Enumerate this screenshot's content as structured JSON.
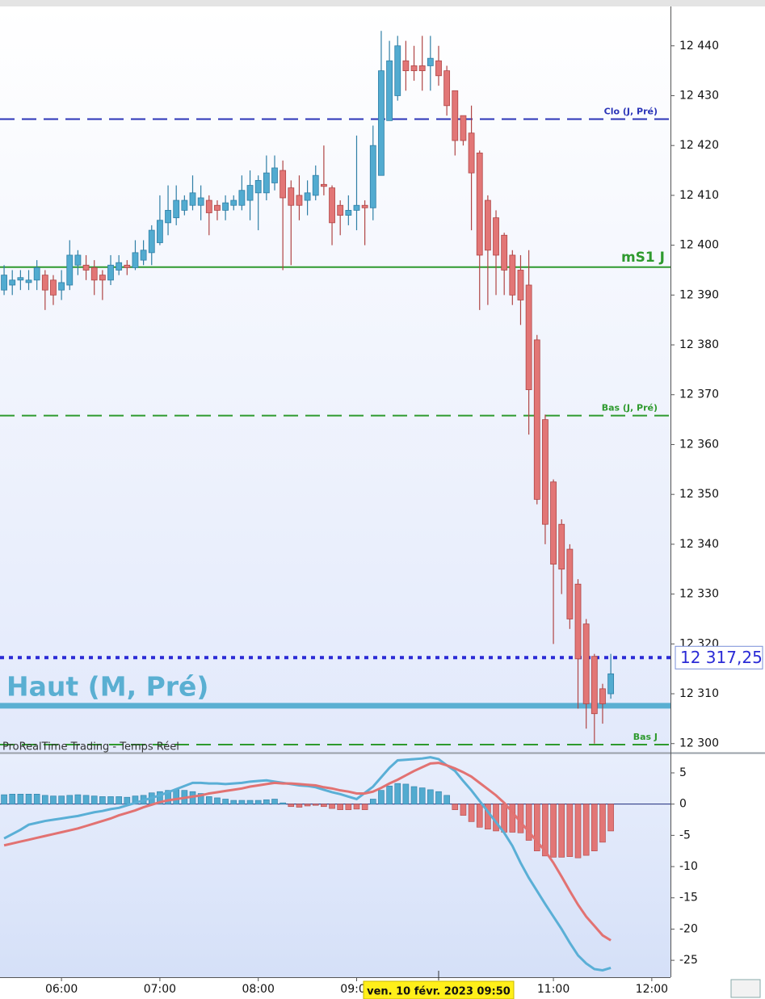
{
  "chart_data": [
    {
      "type": "candlestick",
      "x": [
        325,
        330,
        335,
        340,
        345,
        350,
        355,
        360,
        365,
        370,
        375,
        380,
        385,
        390,
        395,
        400,
        405,
        410,
        415,
        420,
        425,
        430,
        435,
        440,
        445,
        450,
        455,
        460,
        465,
        470,
        475,
        480,
        485,
        490,
        495,
        500,
        505,
        510,
        515,
        520,
        525,
        530,
        535,
        540,
        545,
        550,
        555,
        560,
        565,
        570,
        575,
        580,
        585,
        590,
        595,
        600,
        605,
        610,
        615,
        620,
        625,
        630,
        635,
        640,
        645,
        650,
        655,
        660,
        665,
        670,
        675,
        680,
        685,
        690,
        695
      ],
      "open": [
        12391,
        12392,
        12393,
        12392.5,
        12393,
        12394,
        12393,
        12391,
        12392,
        12396,
        12396,
        12395.5,
        12394,
        12393,
        12395,
        12396,
        12395.5,
        12397,
        12398.5,
        12400.5,
        12404.5,
        12405.5,
        12407,
        12408,
        12408,
        12409,
        12408,
        12407,
        12408,
        12408,
        12409,
        12410.5,
        12410.5,
        12412.5,
        12415,
        12411.5,
        12410,
        12409,
        12410,
        12412.2,
        12411.5,
        12408,
        12406,
        12407,
        12408,
        12407.5,
        12414,
        12425,
        12430,
        12437,
        12436,
        12436,
        12436,
        12437,
        12435,
        12431,
        12426,
        12422.5,
        12418.5,
        12409,
        12405.5,
        12402,
        12398,
        12395,
        12392,
        12381,
        12365,
        12352.5,
        12344,
        12339,
        12332,
        12324,
        12317.5,
        12311,
        12310
      ],
      "high": [
        12396,
        12395,
        12395,
        12395,
        12397,
        12395,
        12394,
        12395,
        12401,
        12399,
        12398,
        12397,
        12395,
        12398,
        12398,
        12397,
        12401,
        12401,
        12404,
        12410,
        12412,
        12412,
        12410,
        12414,
        12412,
        12410,
        12409,
        12410,
        12410,
        12414,
        12415,
        12414,
        12418,
        12418,
        12417,
        12413,
        12414,
        12413,
        12416,
        12420,
        12412,
        12409,
        12410,
        12422,
        12409,
        12424,
        12443,
        12441,
        12442,
        12441,
        12440,
        12442,
        12442,
        12440,
        12436,
        12431,
        12426,
        12428,
        12419,
        12410,
        12407,
        12402.5,
        12399,
        12398,
        12399,
        12382,
        12366,
        12353,
        12345,
        12340,
        12333,
        12325,
        12318,
        12312,
        12318
      ],
      "low": [
        12390,
        12390,
        12391,
        12391,
        12391,
        12387,
        12388,
        12389,
        12391,
        12394,
        12393,
        12390,
        12389,
        12392,
        12394,
        12394,
        12395,
        12396,
        12396,
        12400,
        12402,
        12404,
        12406,
        12407,
        12405,
        12402,
        12405,
        12405,
        12407,
        12407,
        12405,
        12403,
        12409,
        12411,
        12395,
        12396,
        12405,
        12406,
        12409,
        12410,
        12400,
        12402,
        12404,
        12403,
        12400,
        12405,
        12414,
        12425,
        12429,
        12431,
        12433,
        12431,
        12431,
        12432,
        12426,
        12418,
        12420,
        12403,
        12387,
        12388,
        12390,
        12390,
        12388,
        12384,
        12362,
        12348,
        12340,
        12320,
        12330,
        12323,
        12307,
        12303,
        12300,
        12304,
        12309
      ],
      "close": [
        12394,
        12393,
        12393.5,
        12393,
        12395.5,
        12391,
        12390,
        12392.5,
        12398,
        12398,
        12395,
        12393,
        12393,
        12396,
        12396.5,
        12395.5,
        12398.5,
        12399,
        12403,
        12405,
        12407,
        12409,
        12409,
        12410.5,
        12409.5,
        12406.5,
        12407,
        12408.5,
        12409,
        12411,
        12412,
        12413,
        12414.5,
        12415.5,
        12409.5,
        12408,
        12408,
        12410.5,
        12414,
        12411.8,
        12404.5,
        12406,
        12407,
        12408,
        12407.5,
        12420,
        12435,
        12437,
        12440,
        12435,
        12435,
        12435,
        12437.5,
        12434,
        12428,
        12421,
        12421,
        12414.5,
        12398,
        12399,
        12398,
        12395,
        12390,
        12389,
        12371,
        12349,
        12344,
        12336,
        12335,
        12325,
        12317,
        12308,
        12306,
        12308,
        12314
      ],
      "up_color": "#52abd0",
      "down_color": "#e27676",
      "xlim": [
        322.5,
        731.4
      ],
      "ylim": [
        12298.5,
        12447.9
      ],
      "yticks": [
        {
          "value": 12300,
          "label": "12 300"
        },
        {
          "value": 12310,
          "label": "12 310"
        },
        {
          "value": 12320,
          "label": "12 320"
        },
        {
          "value": 12330,
          "label": "12 330"
        },
        {
          "value": 12340,
          "label": "12 340"
        },
        {
          "value": 12350,
          "label": "12 350"
        },
        {
          "value": 12360,
          "label": "12 360"
        },
        {
          "value": 12370,
          "label": "12 370"
        },
        {
          "value": 12380,
          "label": "12 380"
        },
        {
          "value": 12390,
          "label": "12 390"
        },
        {
          "value": 12400,
          "label": "12 400"
        },
        {
          "value": 12410,
          "label": "12 410"
        },
        {
          "value": 12420,
          "label": "12 420"
        },
        {
          "value": 12430,
          "label": "12 430"
        },
        {
          "value": 12440,
          "label": "12 440"
        }
      ],
      "levels": [
        {
          "label": "Clo (J, Pré)",
          "value": 12425.3,
          "color": "#2b35b8",
          "style": "dashed",
          "label_side": "right",
          "label_size": "small"
        },
        {
          "label": "mS1 J",
          "value": 12395.6,
          "color": "#2e9a2e",
          "style": "solid",
          "label_side": "right",
          "label_size": "large"
        },
        {
          "label": "Bas (J, Pré)",
          "value": 12365.8,
          "color": "#2e9a2e",
          "style": "dashed",
          "label_side": "right",
          "label_size": "small"
        },
        {
          "label": "Haut (M, Pré)",
          "value": 12307.6,
          "color": "#5aafd2",
          "style": "thick",
          "label_side": "left",
          "label_size": "large"
        },
        {
          "label": "Bas J",
          "value": 12299.8,
          "color": "#2e9a2e",
          "style": "dashed",
          "label_side": "right",
          "label_size": "small"
        }
      ],
      "last_price": {
        "value": 12317.25,
        "label": "12 317,25",
        "color": "#2b2bd6"
      },
      "watermark": "ProRealTime Trading - Temps Réel"
    },
    {
      "type": "macd",
      "x": [
        325,
        330,
        335,
        340,
        345,
        350,
        355,
        360,
        365,
        370,
        375,
        380,
        385,
        390,
        395,
        400,
        405,
        410,
        415,
        420,
        425,
        430,
        435,
        440,
        445,
        450,
        455,
        460,
        465,
        470,
        475,
        480,
        485,
        490,
        495,
        500,
        505,
        510,
        515,
        520,
        525,
        530,
        535,
        540,
        545,
        550,
        555,
        560,
        565,
        570,
        575,
        580,
        585,
        590,
        595,
        600,
        605,
        610,
        615,
        620,
        625,
        630,
        635,
        640,
        645,
        650,
        655,
        660,
        665,
        670,
        675,
        680,
        685,
        690,
        695
      ],
      "series": [
        {
          "kind": "histogram",
          "color": "#52abd0",
          "negative_color": "#e27676",
          "values": [
            1.5,
            1.6,
            1.6,
            1.6,
            1.6,
            1.4,
            1.3,
            1.3,
            1.4,
            1.5,
            1.4,
            1.3,
            1.2,
            1.2,
            1.2,
            1.1,
            1.3,
            1.4,
            1.8,
            2.0,
            2.2,
            2.3,
            2.2,
            2.0,
            1.7,
            1.2,
            1.0,
            0.8,
            0.6,
            0.6,
            0.6,
            0.6,
            0.7,
            0.8,
            0.2,
            -0.4,
            -0.5,
            -0.3,
            -0.2,
            -0.4,
            -0.7,
            -0.9,
            -0.9,
            -0.8,
            -0.9,
            0.8,
            2.2,
            2.9,
            3.3,
            3.2,
            2.8,
            2.6,
            2.3,
            2.0,
            1.4,
            -0.9,
            -1.8,
            -2.8,
            -3.7,
            -4.0,
            -4.3,
            -4.5,
            -4.5,
            -4.6,
            -5.8,
            -7.5,
            -8.3,
            -8.5,
            -8.5,
            -8.4,
            -8.6,
            -8.2,
            -7.5,
            -6.1,
            -4.3
          ]
        },
        {
          "kind": "line",
          "color": "#5aafd6",
          "values": [
            -5.5,
            -4.8,
            -4.1,
            -3.3,
            -3.0,
            -2.7,
            -2.5,
            -2.3,
            -2.1,
            -1.9,
            -1.6,
            -1.3,
            -1.1,
            -0.8,
            -0.6,
            -0.2,
            0.2,
            0.6,
            1.0,
            1.4,
            1.9,
            2.4,
            2.9,
            3.4,
            3.4,
            3.3,
            3.3,
            3.2,
            3.3,
            3.4,
            3.6,
            3.7,
            3.8,
            3.6,
            3.4,
            3.2,
            3.0,
            2.9,
            2.7,
            2.3,
            1.9,
            1.6,
            1.2,
            0.8,
            1.8,
            2.8,
            4.3,
            5.8,
            7.0,
            7.1,
            7.2,
            7.3,
            7.5,
            7.2,
            6.2,
            5.3,
            3.7,
            2.2,
            0.5,
            -1.2,
            -2.9,
            -4.6,
            -6.7,
            -9.4,
            -11.8,
            -13.9,
            -16,
            -18,
            -20,
            -22.2,
            -24.2,
            -25.5,
            -26.4,
            -26.6,
            -26.2
          ]
        },
        {
          "kind": "line",
          "color": "#e27272",
          "values": [
            -6.6,
            -6.3,
            -6.0,
            -5.7,
            -5.4,
            -5.1,
            -4.8,
            -4.5,
            -4.2,
            -3.9,
            -3.5,
            -3.1,
            -2.7,
            -2.3,
            -1.8,
            -1.4,
            -1.0,
            -0.5,
            -0.1,
            0.3,
            0.6,
            0.8,
            1.0,
            1.2,
            1.4,
            1.7,
            1.9,
            2.1,
            2.3,
            2.5,
            2.8,
            3.0,
            3.2,
            3.4,
            3.3,
            3.3,
            3.2,
            3.1,
            3.0,
            2.7,
            2.5,
            2.2,
            2.0,
            1.7,
            1.7,
            2.0,
            2.6,
            3.3,
            3.9,
            4.6,
            5.3,
            5.9,
            6.5,
            6.6,
            6.2,
            5.7,
            5.1,
            4.4,
            3.4,
            2.4,
            1.4,
            0.2,
            -1.3,
            -2.9,
            -4.4,
            -6.0,
            -7.5,
            -9.4,
            -11.6,
            -13.9,
            -16.1,
            -18,
            -19.5,
            -21,
            -21.8
          ]
        }
      ],
      "xlim": [
        322.5,
        731.4
      ],
      "xticks": [
        {
          "value": 360,
          "label": "06:00"
        },
        {
          "value": 420,
          "label": "07:00"
        },
        {
          "value": 480,
          "label": "08:00"
        },
        {
          "value": 540,
          "label": "09:00"
        },
        {
          "value": 660,
          "label": "11:00"
        },
        {
          "value": 720,
          "label": "12:00"
        }
      ],
      "cursor": {
        "value": 590,
        "label": "ven. 10 févr. 2023 09:50"
      },
      "ylim": [
        -27.7,
        8.1
      ],
      "yticks": [
        5,
        0,
        -5,
        -10,
        -15,
        -20,
        -25
      ]
    }
  ]
}
